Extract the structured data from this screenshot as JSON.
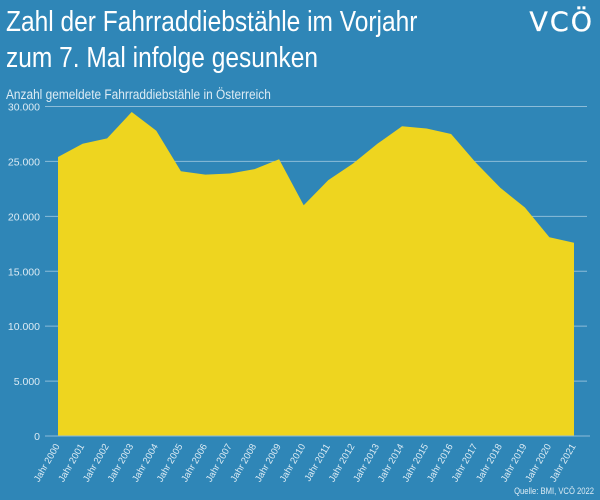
{
  "header": {
    "title_line1": "Zahl der Fahrraddiebstähle im Vorjahr",
    "title_line2": "zum 7. Mal infolge gesunken",
    "logo_text": "VCÖ"
  },
  "source": "Quelle: BMI, VCÖ 2022",
  "colors": {
    "background": "#2f86b7",
    "area": "#eed51f",
    "text": "#dcebf4"
  },
  "chart_data": {
    "type": "area",
    "title": "Zahl der Fahrraddiebstähle im Vorjahr zum 7. Mal infolge gesunken",
    "subtitle": "Anzahl gemeldete Fahrraddiebstähle in Österreich",
    "xlabel": "",
    "ylabel": "",
    "categories": [
      "Jahr 2000",
      "Jahr 2001",
      "Jahr 2002",
      "Jahr 2003",
      "Jahr 2004",
      "Jahr 2005",
      "Jahr 2006",
      "Jahr 2007",
      "Jahr 2008",
      "Jahr 2009",
      "Jahr 2010",
      "Jahr 2011",
      "Jahr 2012",
      "Jahr 2013",
      "Jahr 2014",
      "Jahr 2015",
      "Jahr 2016",
      "Jahr 2017",
      "Jahr 2018",
      "Jahr 2019",
      "Jahr 2020",
      "Jahr 2021"
    ],
    "values": [
      25400,
      26600,
      27100,
      29500,
      27800,
      24100,
      23800,
      23900,
      24300,
      25200,
      21000,
      23300,
      24800,
      26600,
      28200,
      28000,
      27500,
      24900,
      22600,
      20800,
      18100,
      17600
    ],
    "ylim": [
      0,
      30000
    ],
    "yticks": [
      0,
      5000,
      10000,
      15000,
      20000,
      25000,
      30000
    ],
    "ytick_labels": [
      "0",
      "5.000",
      "10.000",
      "15.000",
      "20.000",
      "25.000",
      "30.000"
    ],
    "grid": true,
    "legend": "none"
  }
}
